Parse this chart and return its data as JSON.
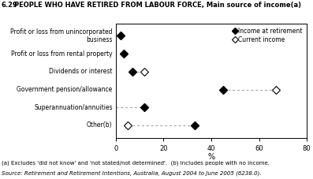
{
  "title_num": "6.29",
  "title_text": "PEOPLE WHO HAVE RETIRED FROM LABOUR FORCE,",
  "title_sub": "Main source of income(a)",
  "categories": [
    "Profit or loss from unincorporated\nbusiness",
    "Profit or loss from rental property",
    "Dividends or interest",
    "Government pension/allowance",
    "Superannuation/annuities",
    "Other(b)"
  ],
  "income_at_retirement": [
    2.0,
    3.5,
    7.0,
    45.0,
    12.0,
    33.0
  ],
  "current_income": [
    null,
    null,
    12.0,
    67.0,
    null,
    5.0
  ],
  "has_dashed_line": [
    false,
    false,
    true,
    true,
    true,
    true
  ],
  "xlabel": "%",
  "xlim": [
    0,
    80
  ],
  "xticks": [
    0,
    20,
    40,
    60,
    80
  ],
  "footnote1": "(a) Excludes 'did not know' and 'not stated/not determined'.  (b) Includes people with no income.",
  "footnote2": "Source: Retirement and Retirement Intentions, Australia, August 2004 to June 2005 (6238.0).",
  "legend_filled": "Income at retirement",
  "legend_open": "Current income",
  "marker_size": 5,
  "line_color": "#999999",
  "marker_filled_color": "#000000",
  "marker_open_color": "#ffffff",
  "background_color": "#ffffff"
}
